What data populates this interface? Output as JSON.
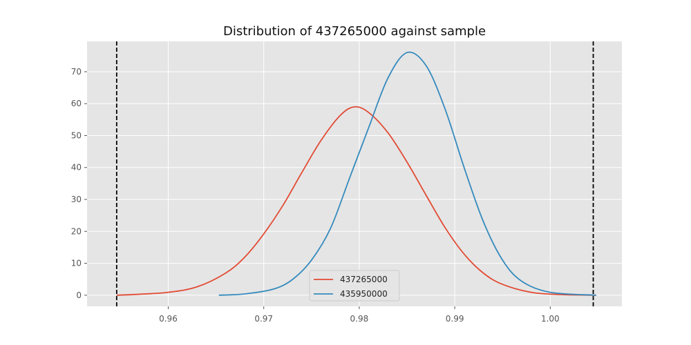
{
  "chart_data": {
    "type": "line",
    "title": "Distribution of 437265000 against sample",
    "xlabel": "",
    "ylabel": "",
    "xlim": [
      0.9515,
      1.0075
    ],
    "ylim": [
      -3.5,
      79.5
    ],
    "x_ticks": [
      0.96,
      0.97,
      0.98,
      0.99,
      1.0
    ],
    "x_tick_labels": [
      "0.96",
      "0.97",
      "0.98",
      "0.99",
      "1.00"
    ],
    "y_ticks": [
      0,
      10,
      20,
      30,
      40,
      50,
      60,
      70
    ],
    "y_tick_labels": [
      "0",
      "10",
      "20",
      "30",
      "40",
      "50",
      "60",
      "70"
    ],
    "grid": true,
    "legend_position": "lower-center",
    "series": [
      {
        "name": "437265000",
        "color": "#E24A33",
        "x": [
          0.9546,
          0.957,
          0.96,
          0.963,
          0.966,
          0.968,
          0.97,
          0.972,
          0.974,
          0.976,
          0.978,
          0.9795,
          0.981,
          0.983,
          0.985,
          0.987,
          0.989,
          0.991,
          0.993,
          0.995,
          0.998,
          1.001,
          1.0048
        ],
        "y": [
          0.0,
          0.3,
          0.9,
          2.6,
          6.9,
          11.9,
          19.2,
          28.1,
          38.5,
          48.5,
          56.3,
          59.0,
          57.2,
          50.9,
          41.7,
          31.3,
          21.1,
          12.8,
          6.9,
          3.4,
          0.9,
          0.2,
          0.0
        ]
      },
      {
        "name": "435950000",
        "color": "#348ABD",
        "x": [
          0.9653,
          0.968,
          0.971,
          0.973,
          0.975,
          0.977,
          0.979,
          0.981,
          0.983,
          0.985,
          0.987,
          0.989,
          0.991,
          0.993,
          0.995,
          0.997,
          1.0,
          1.0048
        ],
        "y": [
          0.0,
          0.4,
          1.9,
          4.9,
          11.0,
          21.0,
          36.8,
          52.6,
          68.0,
          76.0,
          71.9,
          58.2,
          39.8,
          23.0,
          11.0,
          4.4,
          0.9,
          0.0
        ]
      }
    ],
    "vlines": [
      {
        "x": 0.9546,
        "color": "#000000",
        "style": "dashed"
      },
      {
        "x": 1.0045,
        "color": "#000000",
        "style": "dashed"
      }
    ]
  }
}
